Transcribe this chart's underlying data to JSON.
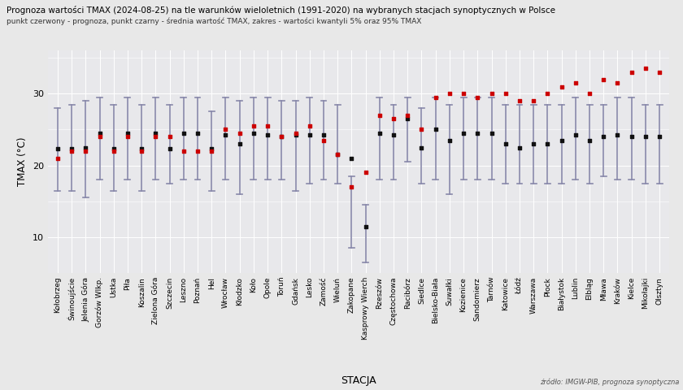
{
  "title": "Prognoza wartości TMAX (2024-08-25) na tle warunków wieloletnich (1991-2020) na wybranych stacjach synoptycznych w Polsce",
  "subtitle": "punkt czerwony - prognoza, punkt czarny - średnia wartość TMAX, zakres - wartości kwantyli 5% oraz 95% TMAX",
  "xlabel": "STACJA",
  "ylabel": "TMAX (°C)",
  "source": "źródło: IMGW-PIB, prognoza synoptyczna",
  "stations": [
    "Kołobrzeg",
    "Świnoujście",
    "Jelenia Góra",
    "Gorzów Wlkp.",
    "Ustka",
    "Piła",
    "Koszalin",
    "Zielona Góra",
    "Szczecin",
    "Leszno",
    "Poznań",
    "Hel",
    "Wrocław",
    "Kłodzko",
    "Koło",
    "Opole",
    "Toruń",
    "Gdańsk",
    "Lesko",
    "Zamość",
    "Wieluń",
    "Zakopane",
    "Kasprowy Wierch",
    "Rzeszów",
    "Częstochowa",
    "Racibórz",
    "Siedlce",
    "Bielsko-Biała",
    "Suwałki",
    "Kozienice",
    "Sandomierz",
    "Tarnów",
    "Katowice",
    "Łódź",
    "Warszawa",
    "Płock",
    "Białystok",
    "Lublin",
    "Elbląg",
    "Mława",
    "Kraków",
    "Kielce",
    "Mikołajki",
    "Olsztyn"
  ],
  "mean": [
    22.3,
    22.3,
    22.5,
    24.5,
    22.3,
    24.5,
    22.3,
    24.5,
    22.3,
    24.5,
    24.5,
    22.3,
    24.3,
    23.0,
    24.5,
    24.3,
    24.0,
    24.3,
    24.3,
    24.3,
    21.5,
    21.0,
    11.5,
    24.5,
    24.3,
    26.5,
    22.5,
    25.0,
    23.5,
    24.5,
    24.5,
    24.5,
    23.0,
    22.5,
    23.0,
    23.0,
    23.5,
    24.3,
    23.5,
    24.0,
    24.3,
    24.0,
    24.0,
    24.0
  ],
  "forecast": [
    21.0,
    22.0,
    22.0,
    24.0,
    22.0,
    24.0,
    22.0,
    24.0,
    24.0,
    22.0,
    22.0,
    22.0,
    25.0,
    24.5,
    25.5,
    25.5,
    24.0,
    24.5,
    25.5,
    23.5,
    21.5,
    17.0,
    19.0,
    27.0,
    26.5,
    27.0,
    25.0,
    29.5,
    30.0,
    30.0,
    29.5,
    30.0,
    30.0,
    29.0,
    29.0,
    30.0,
    31.0,
    31.5,
    30.0,
    32.0,
    31.5,
    33.0,
    33.5,
    33.0
  ],
  "q05": [
    16.5,
    16.5,
    15.5,
    18.0,
    16.5,
    18.0,
    16.5,
    18.0,
    17.5,
    18.0,
    18.0,
    16.5,
    18.0,
    16.0,
    18.0,
    18.0,
    18.0,
    16.5,
    17.5,
    18.0,
    17.5,
    8.5,
    6.5,
    18.0,
    18.0,
    20.5,
    17.5,
    18.0,
    16.0,
    18.0,
    18.0,
    18.0,
    17.5,
    17.5,
    17.5,
    17.5,
    17.5,
    18.0,
    17.5,
    18.5,
    18.0,
    18.0,
    17.5,
    17.5
  ],
  "q95": [
    28.0,
    28.5,
    29.0,
    29.5,
    28.5,
    29.5,
    28.5,
    29.5,
    28.5,
    29.5,
    29.5,
    27.5,
    29.5,
    29.0,
    29.5,
    29.5,
    29.0,
    29.0,
    29.5,
    29.0,
    28.5,
    18.5,
    14.5,
    29.5,
    28.5,
    29.5,
    28.0,
    29.5,
    28.5,
    29.5,
    29.5,
    29.5,
    28.5,
    28.5,
    28.5,
    28.5,
    28.5,
    29.5,
    28.5,
    28.5,
    29.5,
    29.5,
    28.5,
    28.5
  ],
  "bg_color": "#e8e8e8",
  "plot_bg_color": "#e8e8eb",
  "grid_color": "#ffffff",
  "errbar_color": "#8888aa",
  "mean_color": "#111111",
  "forecast_color": "#cc0000",
  "ylim_min": 5,
  "ylim_max": 36,
  "yticks": [
    10,
    20,
    30
  ]
}
